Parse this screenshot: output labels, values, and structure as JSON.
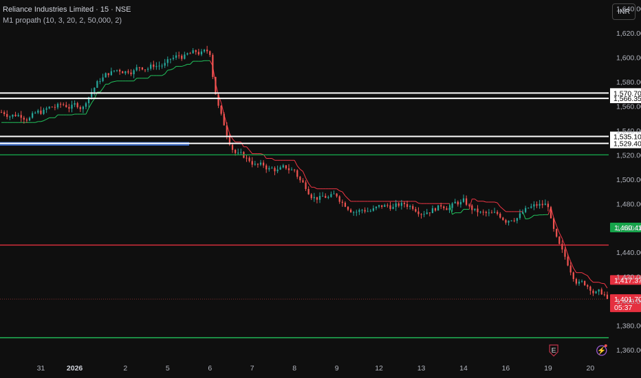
{
  "header": {
    "title": "Reliance Industries Limited · 15 · NSE",
    "indicator": "M1 propath (10, 3, 20, 2, 50,000, 2)"
  },
  "currency_button": "INR",
  "colors": {
    "background": "#0f0f0f",
    "up": "#26a69a",
    "down": "#ef5350",
    "trail_up": "#22c55e",
    "trail_down": "#f23645",
    "green_box": "#16a34a",
    "red_box": "#e5303f",
    "blue_zone": "#3b6fd6"
  },
  "chart_data": {
    "type": "candlestick",
    "y_ticks": [
      "1,640.00",
      "1,620.00",
      "1,600.00",
      "1,580.00",
      "1,560.00",
      "1,540.00",
      "1,520.00",
      "1,500.00",
      "1,480.00",
      "1,460.00",
      "1,440.00",
      "1,420.00",
      "1,400.00",
      "1,380.00",
      "1,360.00"
    ],
    "y_tick_values": [
      1640,
      1620,
      1600,
      1580,
      1560,
      1540,
      1520,
      1500,
      1480,
      1460,
      1440,
      1420,
      1400,
      1380,
      1360
    ],
    "ylim": [
      1355,
      1647
    ],
    "x_ticks": [
      "31",
      "2026",
      "2",
      "5",
      "6",
      "7",
      "8",
      "9",
      "12",
      "13",
      "14",
      "16",
      "19",
      "20"
    ],
    "x_tick_index": [
      14,
      26,
      44,
      59,
      74,
      89,
      104,
      119,
      134,
      149,
      164,
      179,
      194,
      209
    ],
    "year_tick": "2026",
    "n_bars": 216,
    "bars_per_day": 15,
    "day_closes": [
      1555,
      1560,
      1592,
      1596,
      1602,
      1510,
      1506,
      1484,
      1476,
      1478,
      1482,
      1466,
      1478,
      1410,
      1401.7
    ],
    "horizontal_levels": [
      {
        "value": 1570.7,
        "label": "1,570.70",
        "color": "#ffffff",
        "style": "white_box"
      },
      {
        "value": 1566.35,
        "label": "1,566.35",
        "color": "#ffffff",
        "style": "white_box"
      },
      {
        "value": 1535.1,
        "label": "1,535.10",
        "color": "#ffffff",
        "style": "white_box"
      },
      {
        "value": 1529.4,
        "label": "1,529.40",
        "color": "#ffffff",
        "style": "white_box"
      },
      {
        "value": 1520.0,
        "color": "#16a34a",
        "style": "line"
      },
      {
        "value": 1446.0,
        "color": "#e5303f",
        "style": "line"
      },
      {
        "value": 1370.0,
        "color": "#22c55e",
        "style": "line"
      }
    ],
    "price_tags": [
      {
        "value": 1460.41,
        "label": "1,460.41",
        "color": "#16a34a"
      },
      {
        "value": 1417.37,
        "label": "1,417.37",
        "color": "#e5303f"
      },
      {
        "value": 1401.7,
        "label": "1,401.70",
        "sub": "05:37",
        "color": "#e5303f"
      }
    ],
    "blue_zone": {
      "from": 1527.5,
      "to": 1530.5
    },
    "markers": [
      {
        "index": 196,
        "label": "E",
        "kind": "earnings"
      },
      {
        "index": 213,
        "label": "⚡",
        "kind": "dividend"
      }
    ]
  }
}
